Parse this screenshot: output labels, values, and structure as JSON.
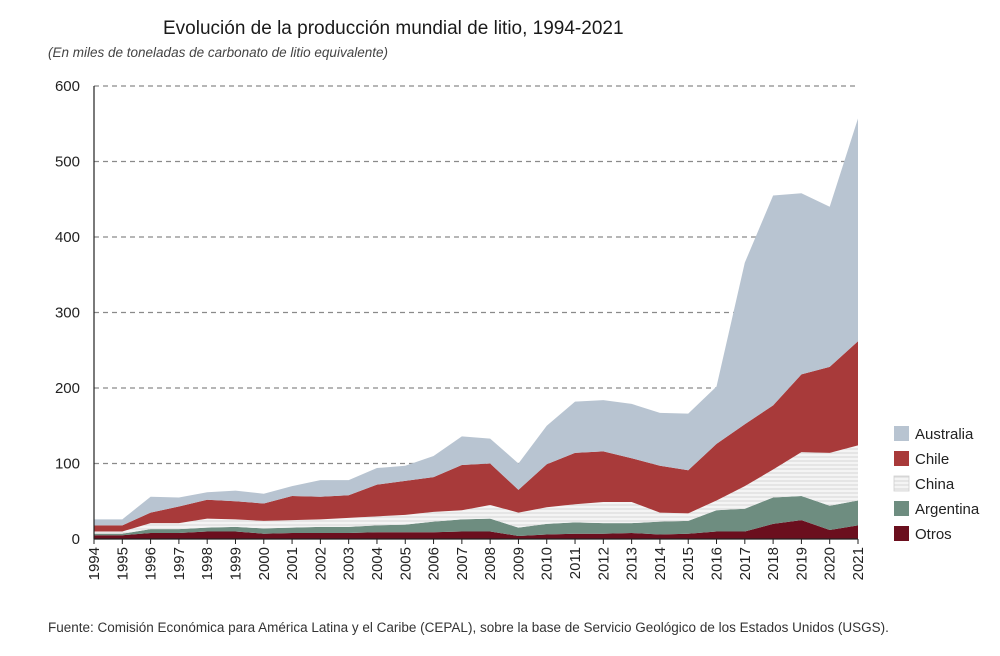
{
  "chart_data": {
    "type": "area",
    "stacked": true,
    "title": "Evolución de la producción mundial de litio, 1994-2021",
    "subtitle": "(En miles de toneladas de carbonato de litio equivalente)",
    "source": "Fuente: Comisión Económica para América Latina y el Caribe (CEPAL), sobre la base de Servicio Geológico de los Estados Unidos (USGS).",
    "ylim": [
      0,
      600
    ],
    "yticks": [
      0,
      100,
      200,
      300,
      400,
      500,
      600
    ],
    "grid": true,
    "legend_position": "right",
    "categories": [
      "1994",
      "1995",
      "1996",
      "1997",
      "1998",
      "1999",
      "2000",
      "2001",
      "2002",
      "2003",
      "2004",
      "2005",
      "2006",
      "2007",
      "2008",
      "2009",
      "2010",
      "2011",
      "2012",
      "2013",
      "2014",
      "2015",
      "2016",
      "2017",
      "2018",
      "2019",
      "2020",
      "2021"
    ],
    "series": [
      {
        "name": "Otros",
        "color": "#6b0f1e",
        "values": [
          5,
          5,
          8,
          8,
          10,
          10,
          7,
          8,
          8,
          8,
          9,
          9,
          9,
          10,
          10,
          4,
          6,
          7,
          7,
          8,
          6,
          7,
          10,
          10,
          20,
          25,
          12,
          18
        ]
      },
      {
        "name": "Argentina",
        "color": "#6e8d80",
        "values": [
          2,
          2,
          5,
          5,
          5,
          6,
          7,
          7,
          8,
          8,
          9,
          10,
          14,
          16,
          17,
          11,
          14,
          15,
          14,
          13,
          17,
          17,
          28,
          30,
          35,
          32,
          32,
          33
        ]
      },
      {
        "name": "China",
        "color": "#f2f2f2",
        "pattern": "horizontal-lines",
        "values": [
          3,
          3,
          8,
          8,
          12,
          10,
          10,
          10,
          10,
          12,
          12,
          13,
          13,
          12,
          18,
          20,
          22,
          24,
          28,
          28,
          12,
          10,
          13,
          30,
          37,
          58,
          70,
          73
        ]
      },
      {
        "name": "Chile",
        "color": "#a83a3a",
        "values": [
          8,
          8,
          14,
          22,
          25,
          24,
          23,
          32,
          30,
          30,
          42,
          45,
          46,
          60,
          55,
          30,
          57,
          68,
          67,
          58,
          62,
          57,
          75,
          82,
          85,
          103,
          114,
          138
        ]
      },
      {
        "name": "Australia",
        "color": "#b8c4d1",
        "values": [
          8,
          8,
          21,
          12,
          10,
          14,
          13,
          13,
          22,
          20,
          22,
          20,
          28,
          38,
          33,
          35,
          51,
          68,
          68,
          72,
          70,
          75,
          76,
          214,
          278,
          240,
          212,
          295
        ]
      }
    ]
  }
}
